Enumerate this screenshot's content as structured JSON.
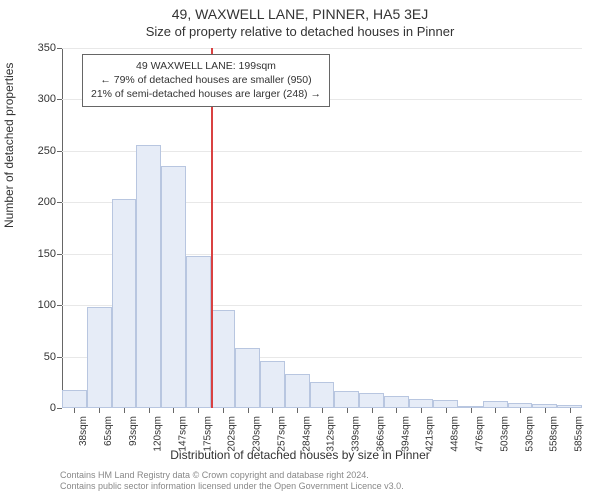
{
  "title_main": "49, WAXWELL LANE, PINNER, HA5 3EJ",
  "title_sub": "Size of property relative to detached houses in Pinner",
  "y_axis_title": "Number of detached properties",
  "x_axis_title": "Distribution of detached houses by size in Pinner",
  "footer_line1": "Contains HM Land Registry data © Crown copyright and database right 2024.",
  "footer_line2": "Contains public sector information licensed under the Open Government Licence v3.0.",
  "chart": {
    "type": "histogram",
    "background_color": "#ffffff",
    "grid_color": "#e8e8e8",
    "axis_color": "#666666",
    "bar_fill": "#e6ecf7",
    "bar_border": "#b8c6e0",
    "marker_color": "#d94141",
    "ylim": [
      0,
      350
    ],
    "ytick_step": 50,
    "yticks": [
      0,
      50,
      100,
      150,
      200,
      250,
      300,
      350
    ],
    "categories": [
      "38sqm",
      "65sqm",
      "93sqm",
      "120sqm",
      "147sqm",
      "175sqm",
      "202sqm",
      "230sqm",
      "257sqm",
      "284sqm",
      "312sqm",
      "339sqm",
      "366sqm",
      "394sqm",
      "421sqm",
      "448sqm",
      "476sqm",
      "503sqm",
      "530sqm",
      "558sqm",
      "585sqm"
    ],
    "values": [
      18,
      98,
      203,
      256,
      235,
      148,
      95,
      58,
      46,
      33,
      25,
      17,
      15,
      12,
      9,
      8,
      2,
      7,
      5,
      4,
      3
    ],
    "marker_after_index": 5,
    "label_fontsize": 11,
    "tick_fontsize": 10,
    "bar_width_ratio": 1.0
  },
  "annotation": {
    "line1": "49 WAXWELL LANE: 199sqm",
    "line2": "← 79% of detached houses are smaller (950)",
    "line3": "21% of semi-detached houses are larger (248) →",
    "border_color": "#666666",
    "background": "#ffffff",
    "fontsize": 10.5
  }
}
